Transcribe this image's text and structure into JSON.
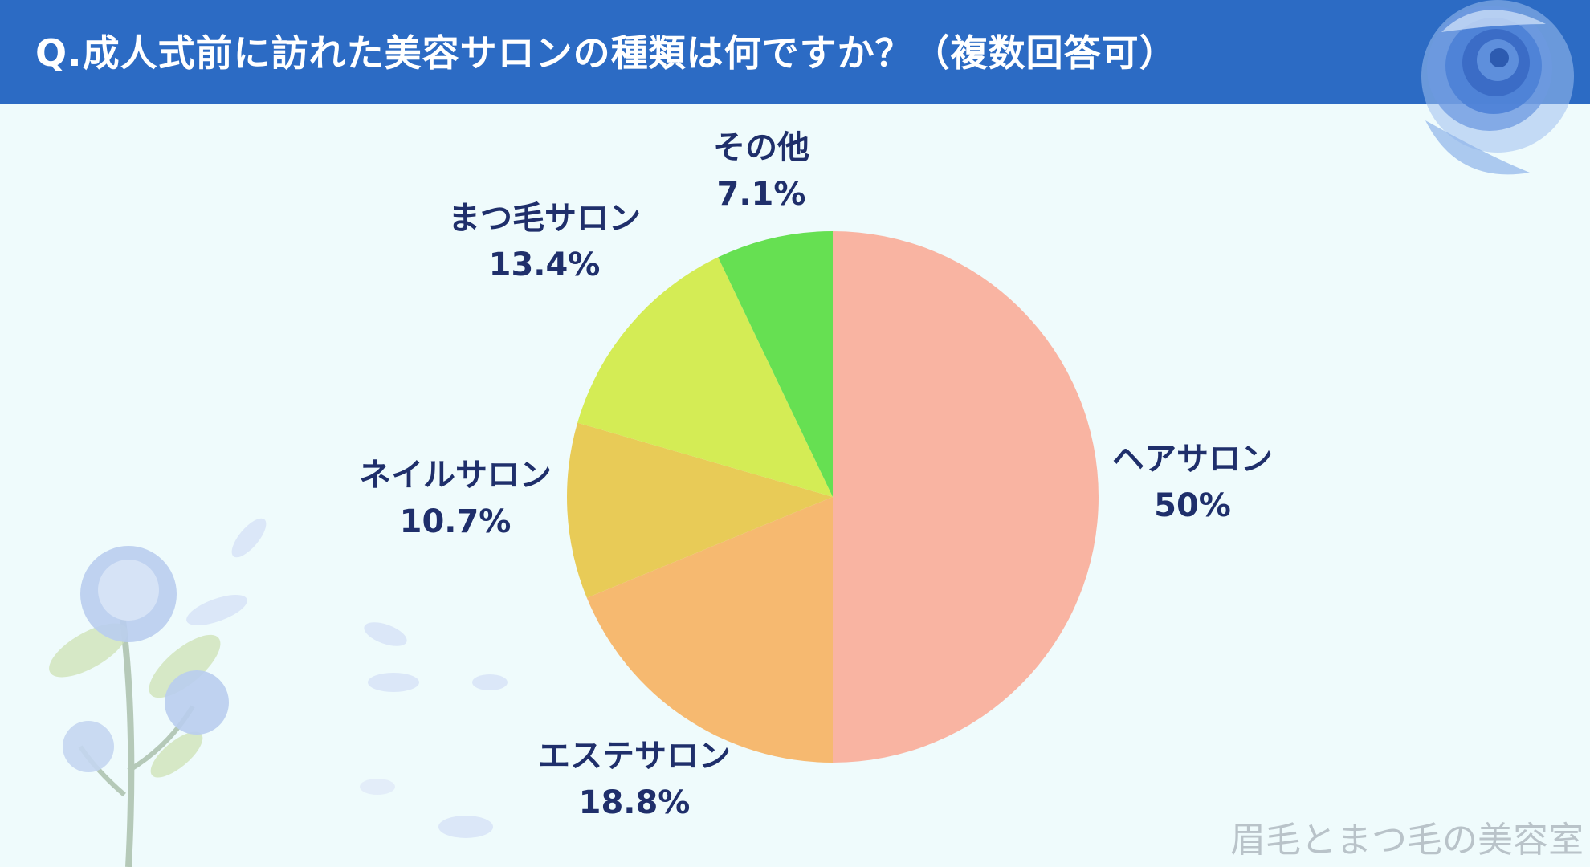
{
  "header": {
    "title": "Q.成人式前に訪れた美容サロンの種類は何ですか？（複数回答可）"
  },
  "chart_data": {
    "type": "pie",
    "title": "Q.成人式前に訪れた美容サロンの種類は何ですか？（複数回答可）",
    "slices": [
      {
        "label": "ヘアサロン",
        "value": 50,
        "display": "50%",
        "color": "#f9b4a2"
      },
      {
        "label": "エステサロン",
        "value": 18.8,
        "display": "18.8%",
        "color": "#f6b970"
      },
      {
        "label": "ネイルサロン",
        "value": 10.7,
        "display": "10.7%",
        "color": "#e8cb57"
      },
      {
        "label": "まつ毛サロン",
        "value": 13.4,
        "display": "13.4%",
        "color": "#d4ec55"
      },
      {
        "label": "その他",
        "value": 7.1,
        "display": "7.1%",
        "color": "#66e052"
      }
    ],
    "start_angle": "12 o'clock",
    "direction": "clockwise"
  },
  "watermark": "眉毛とまつ毛の美容室",
  "colors": {
    "header_bg": "#2c6bc4",
    "background": "#effbfc",
    "label_text": "#1f2f6b",
    "watermark_text": "#b9c3c9"
  },
  "decorations": {
    "top_right": "blue-rose-icon",
    "bottom_left": "rose-stem-icon"
  }
}
